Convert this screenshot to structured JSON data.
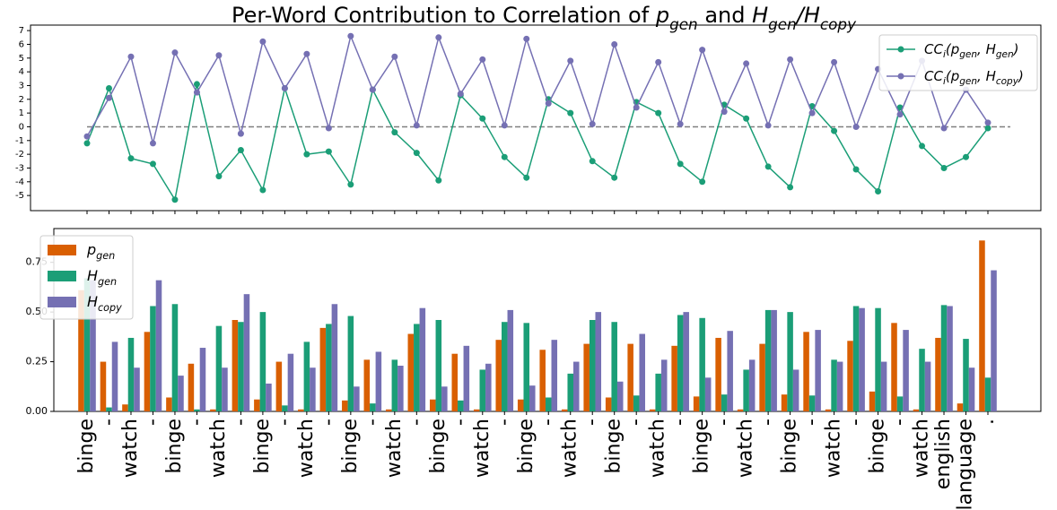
{
  "chart_data": [
    {
      "type": "line",
      "title": "Per-Word Contribution to Correlation of $p_{gen}$ and $H_{gen}/H_{copy}$",
      "categories": [
        null,
        null,
        null,
        null,
        null,
        null,
        null,
        null,
        null,
        null,
        null,
        null,
        null,
        null,
        null,
        null,
        null,
        null,
        null,
        null,
        null,
        null,
        null,
        null,
        null,
        null,
        null,
        null,
        null,
        null,
        null,
        null,
        null,
        null,
        null,
        null,
        null,
        null,
        null,
        null,
        null,
        null
      ],
      "series": [
        {
          "name": "$CC_i(p_{gen}, H_{gen})$",
          "color": "#1b9e77",
          "values": [
            -1.2,
            2.8,
            -2.3,
            -2.7,
            -5.3,
            3.1,
            -3.6,
            -1.7,
            -4.6,
            2.8,
            -2.0,
            -1.8,
            -4.2,
            2.7,
            -0.4,
            -1.9,
            -3.9,
            2.3,
            0.6,
            -2.2,
            -3.7,
            2.0,
            1.0,
            -2.5,
            -3.7,
            1.8,
            1.0,
            -2.7,
            -4.0,
            1.6,
            0.6,
            -2.9,
            -4.4,
            1.5,
            -0.3,
            -3.1,
            -4.7,
            1.4,
            -1.4,
            -3.0,
            -2.2,
            -0.1
          ]
        },
        {
          "name": "$CC_i(p_{gen}, H_{copy})$",
          "color": "#7570b3",
          "values": [
            -0.7,
            2.1,
            5.1,
            -1.2,
            5.4,
            2.5,
            5.2,
            -0.5,
            6.2,
            2.8,
            5.3,
            -0.1,
            6.6,
            2.7,
            5.1,
            0.1,
            6.5,
            2.4,
            4.9,
            0.1,
            6.4,
            1.7,
            4.8,
            0.2,
            6.0,
            1.4,
            4.7,
            0.2,
            5.6,
            1.1,
            4.6,
            0.1,
            4.9,
            1.0,
            4.7,
            0.0,
            4.2,
            0.9,
            4.8,
            -0.1,
            2.7,
            0.3
          ]
        }
      ],
      "hline": 0,
      "ylim": [
        -6.1,
        7.4
      ],
      "yticks": [
        -5,
        -4,
        -3,
        -2,
        -1,
        0,
        1,
        2,
        3,
        4,
        5,
        6,
        7
      ],
      "legend": "upper right"
    },
    {
      "type": "bar",
      "categories": [
        "binge",
        "-",
        "watch",
        "-",
        "binge",
        "-",
        "watch",
        "-",
        "binge",
        "-",
        "watch",
        "-",
        "binge",
        "-",
        "watch",
        "-",
        "binge",
        "-",
        "watch",
        "-",
        "binge",
        "-",
        "watch",
        "-",
        "binge",
        "-",
        "watch",
        "-",
        "binge",
        "-",
        "watch",
        "-",
        "binge",
        "-",
        "watch",
        "-",
        "binge",
        "-",
        "watch",
        "english",
        "language",
        "."
      ],
      "series": [
        {
          "name": "$p_{gen}$",
          "color": "#d95f02",
          "values": [
            0.61,
            0.25,
            0.035,
            0.4,
            0.07,
            0.24,
            0.01,
            0.46,
            0.06,
            0.25,
            0.01,
            0.42,
            0.055,
            0.26,
            0.01,
            0.39,
            0.06,
            0.29,
            0.01,
            0.36,
            0.06,
            0.31,
            0.01,
            0.34,
            0.07,
            0.34,
            0.01,
            0.33,
            0.075,
            0.37,
            0.01,
            0.34,
            0.085,
            0.4,
            0.01,
            0.355,
            0.1,
            0.445,
            0.01,
            0.37,
            0.04,
            0.86
          ]
        },
        {
          "name": "$H_{gen}$",
          "color": "#1b9e77",
          "values": [
            0.67,
            0.02,
            0.37,
            0.53,
            0.54,
            0.01,
            0.43,
            0.45,
            0.5,
            0.03,
            0.35,
            0.44,
            0.48,
            0.04,
            0.26,
            0.44,
            0.46,
            0.055,
            0.21,
            0.45,
            0.445,
            0.07,
            0.19,
            0.46,
            0.45,
            0.08,
            0.19,
            0.485,
            0.47,
            0.085,
            0.21,
            0.51,
            0.5,
            0.08,
            0.26,
            0.53,
            0.52,
            0.075,
            0.315,
            0.535,
            0.365,
            0.17
          ]
        },
        {
          "name": "$H_{copy}$",
          "color": "#7570b3",
          "values": [
            0.66,
            0.35,
            0.22,
            0.66,
            0.18,
            0.32,
            0.22,
            0.59,
            0.14,
            0.29,
            0.22,
            0.54,
            0.125,
            0.3,
            0.23,
            0.52,
            0.125,
            0.33,
            0.24,
            0.51,
            0.13,
            0.36,
            0.25,
            0.5,
            0.15,
            0.39,
            0.26,
            0.5,
            0.17,
            0.405,
            0.26,
            0.51,
            0.21,
            0.41,
            0.25,
            0.52,
            0.25,
            0.41,
            0.25,
            0.53,
            0.22,
            0.71
          ]
        }
      ],
      "ylim": [
        0,
        0.92
      ],
      "yticks": [
        {
          "value": 0,
          "label": "0.00"
        },
        {
          "value": 0.25,
          "label": "0.25"
        },
        {
          "value": 0.5,
          "label": "0.50"
        },
        {
          "value": 0.75,
          "label": "0.75"
        }
      ],
      "legend": "upper left"
    }
  ]
}
